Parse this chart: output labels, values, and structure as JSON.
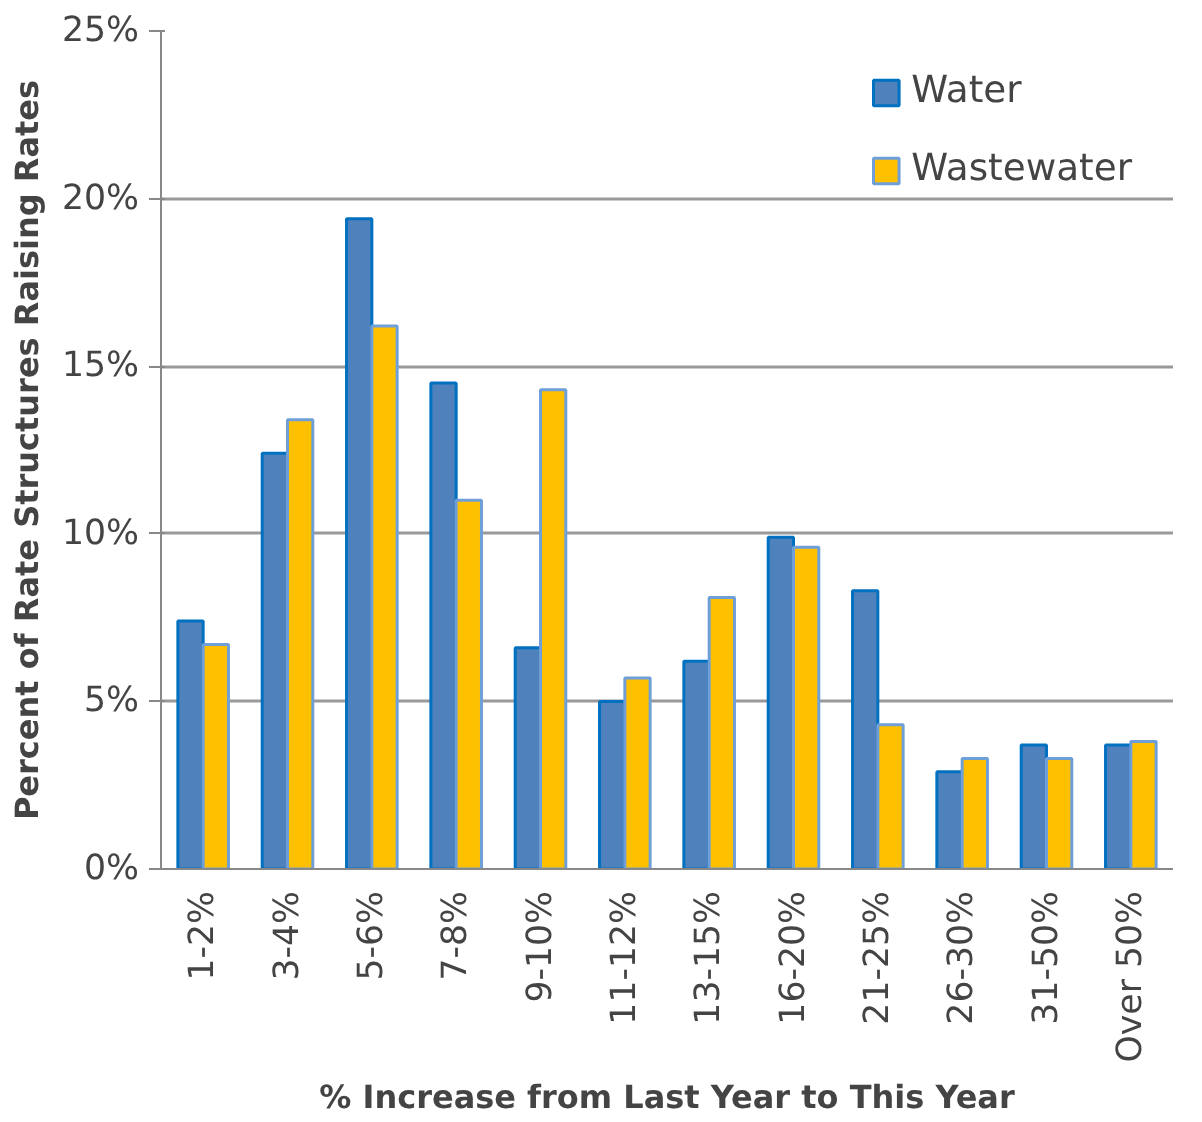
{
  "chart_data": {
    "type": "bar",
    "xlabel": "% Increase from Last Year to This Year",
    "ylabel": "Percent of Rate Structures Raising Rates",
    "categories": [
      "1-2%",
      "3-4%",
      "5-6%",
      "7-8%",
      "9-10%",
      "11-12%",
      "13-15%",
      "16-20%",
      "21-25%",
      "26-30%",
      "31-50%",
      "Over 50%"
    ],
    "series": [
      {
        "name": "Water",
        "color": "#4f81bd",
        "values": [
          7.4,
          12.4,
          19.4,
          14.5,
          6.6,
          5.0,
          6.2,
          9.9,
          8.3,
          2.9,
          3.7,
          3.7
        ]
      },
      {
        "name": "Wastewater",
        "color": "#ffc000",
        "values": [
          6.7,
          13.4,
          16.2,
          11.0,
          14.3,
          5.7,
          8.1,
          9.6,
          4.3,
          3.3,
          3.3,
          3.8
        ]
      }
    ],
    "ylim": [
      0,
      25
    ],
    "yticks": [
      {
        "value": 0,
        "label": "0%"
      },
      {
        "value": 5,
        "label": "5%"
      },
      {
        "value": 10,
        "label": "10%"
      },
      {
        "value": 15,
        "label": "15%"
      },
      {
        "value": 20,
        "label": "20%"
      },
      {
        "value": 25,
        "label": "25%"
      }
    ],
    "grid": "y",
    "legend": "top right"
  }
}
